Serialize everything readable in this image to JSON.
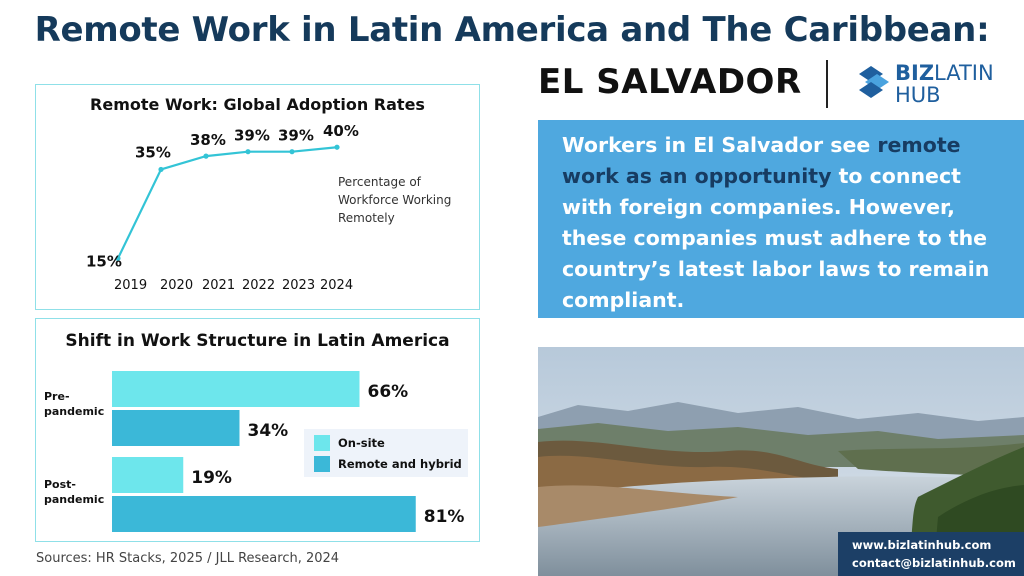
{
  "header": {
    "title": "Remote Work in Latin America and The Caribbean:",
    "country": "EL SALVADOR",
    "logo": {
      "line1_bold": "BIZ",
      "line1_rest": "LATIN",
      "line2": "HUB"
    }
  },
  "info_box": {
    "text_before": "Workers in El Salvador see ",
    "highlight": "remote work as an opportunity",
    "text_after": " to connect with foreign companies. However, these companies must adhere to the country’s latest labor laws to remain compliant."
  },
  "contact": {
    "website": "www.bizlatinhub.com",
    "email": "contact@bizlatinhub.com"
  },
  "sources": "Sources: HR Stacks, 2025 /  JLL Research, 2024",
  "chart_data": [
    {
      "type": "line",
      "title": "Remote Work: Global Adoption Rates",
      "x": [
        "2019",
        "2020",
        "2021",
        "2022",
        "2023",
        "2024"
      ],
      "series": [
        {
          "name": "Percentage of Workforce Working Remotely",
          "values": [
            15,
            35,
            38,
            39,
            39,
            40
          ],
          "labels": [
            "15%",
            "35%",
            "38%",
            "39%",
            "39%",
            "40%"
          ]
        }
      ],
      "ylim": [
        0,
        45
      ],
      "grid": false,
      "color": "#33c4d6"
    },
    {
      "type": "bar",
      "orientation": "horizontal",
      "title": "Shift in Work Structure in Latin America",
      "categories": [
        "Pre-pandemic",
        "Post-pandemic"
      ],
      "series": [
        {
          "name": "On-site",
          "values": [
            66,
            19
          ],
          "labels": [
            "66%",
            "19%"
          ],
          "color": "#6de6ec"
        },
        {
          "name": "Remote and hybrid",
          "values": [
            34,
            81
          ],
          "labels": [
            "34%",
            "81%"
          ],
          "color": "#3bb8d8"
        }
      ],
      "xlim": [
        0,
        100
      ],
      "legend": "right"
    }
  ]
}
